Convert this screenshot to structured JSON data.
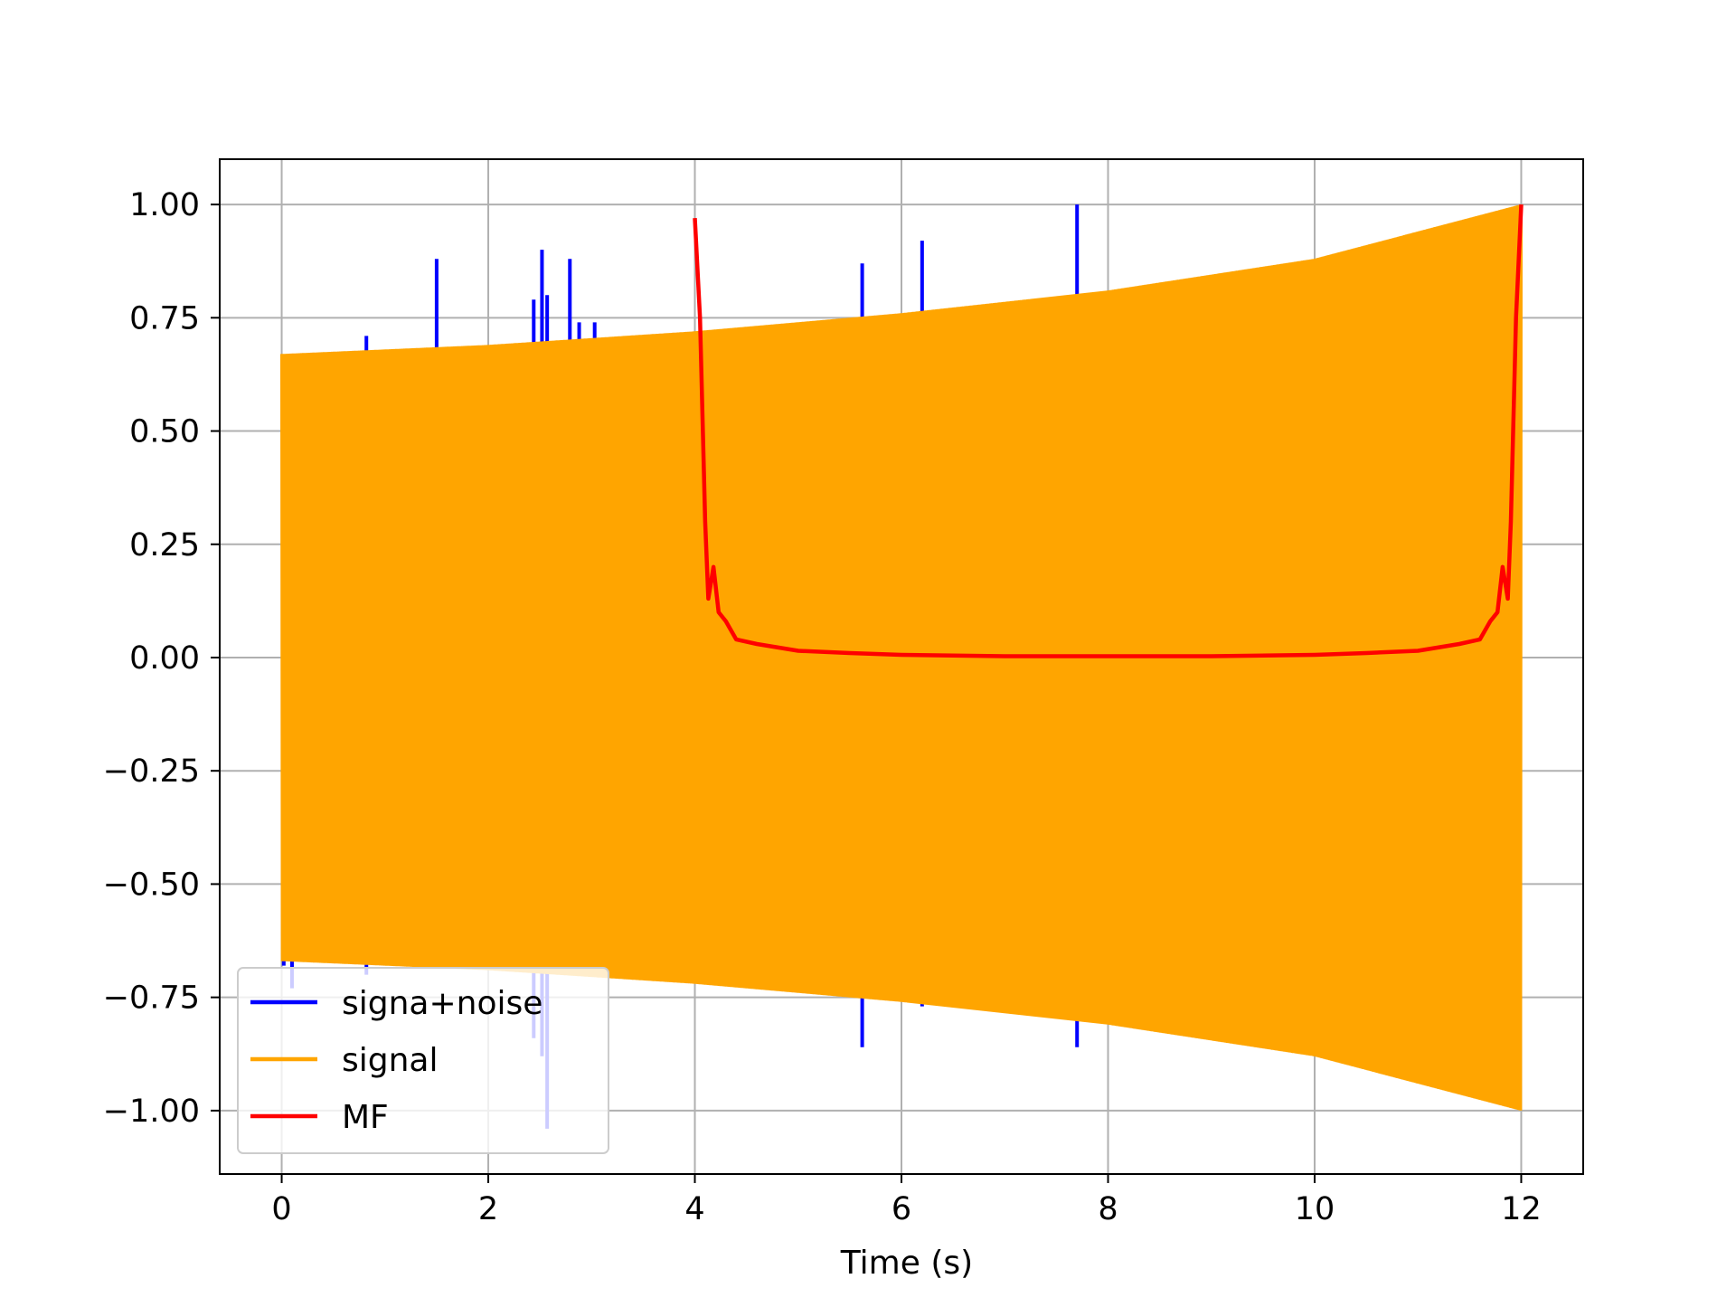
{
  "chart_data": {
    "type": "line",
    "title": "",
    "xlabel": "Time (s)",
    "ylabel": "",
    "xlim": [
      -0.6,
      12.6
    ],
    "ylim": [
      -1.14,
      1.1
    ],
    "grid": true,
    "legend_position": "lower-left",
    "xticks": [
      0,
      2,
      4,
      6,
      8,
      10,
      12
    ],
    "xtick_labels": [
      "0",
      "2",
      "4",
      "6",
      "8",
      "10",
      "12"
    ],
    "yticks": [
      1.0,
      0.75,
      0.5,
      0.25,
      0.0,
      -0.25,
      -0.5,
      -0.75,
      -1.0
    ],
    "ytick_labels": [
      "1.00",
      "0.75",
      "0.50",
      "0.25",
      "0.00",
      "−0.25",
      "−0.50",
      "−0.75",
      "−1.00"
    ],
    "series": [
      {
        "name": "signa+noise",
        "color": "#0000ff",
        "description_note_free": true,
        "spikes": [
          {
            "x": 0.02,
            "ymin": -0.68,
            "ymax": 0.6
          },
          {
            "x": 0.1,
            "ymin": -0.73,
            "ymax": 0.65
          },
          {
            "x": 0.82,
            "ymin": -0.7,
            "ymax": 0.71
          },
          {
            "x": 1.5,
            "ymin": -0.65,
            "ymax": 0.88
          },
          {
            "x": 2.44,
            "ymin": -0.84,
            "ymax": 0.79
          },
          {
            "x": 2.52,
            "ymin": -0.88,
            "ymax": 0.9
          },
          {
            "x": 2.57,
            "ymin": -1.04,
            "ymax": 0.8
          },
          {
            "x": 2.79,
            "ymin": -0.65,
            "ymax": 0.88
          },
          {
            "x": 2.88,
            "ymin": -0.65,
            "ymax": 0.74
          },
          {
            "x": 3.03,
            "ymin": -0.65,
            "ymax": 0.74
          },
          {
            "x": 5.62,
            "ymin": -0.86,
            "ymax": 0.87
          },
          {
            "x": 6.2,
            "ymin": -0.77,
            "ymax": 0.92
          },
          {
            "x": 7.7,
            "ymin": -0.86,
            "ymax": 1.0
          },
          {
            "x": 7.75,
            "ymin": -0.8,
            "ymax": 0.8
          }
        ]
      },
      {
        "name": "signal",
        "color": "#ffa500",
        "envelope_points": [
          {
            "x": 0,
            "amplitude": 0.67
          },
          {
            "x": 2,
            "amplitude": 0.69
          },
          {
            "x": 4,
            "amplitude": 0.72
          },
          {
            "x": 6,
            "amplitude": 0.76
          },
          {
            "x": 8,
            "amplitude": 0.81
          },
          {
            "x": 10,
            "amplitude": 0.88
          },
          {
            "x": 12,
            "amplitude": 1.0
          }
        ],
        "x_range": [
          0,
          12
        ]
      },
      {
        "name": "MF",
        "color": "#ff0000",
        "points": [
          [
            4.0,
            0.97
          ],
          [
            4.05,
            0.75
          ],
          [
            4.1,
            0.3
          ],
          [
            4.13,
            0.13
          ],
          [
            4.18,
            0.2
          ],
          [
            4.23,
            0.1
          ],
          [
            4.3,
            0.08
          ],
          [
            4.4,
            0.04
          ],
          [
            4.6,
            0.03
          ],
          [
            5.0,
            0.015
          ],
          [
            5.5,
            0.01
          ],
          [
            6.0,
            0.006
          ],
          [
            7.0,
            0.003
          ],
          [
            8.0,
            0.003
          ],
          [
            9.0,
            0.003
          ],
          [
            10.0,
            0.006
          ],
          [
            10.5,
            0.01
          ],
          [
            11.0,
            0.015
          ],
          [
            11.4,
            0.03
          ],
          [
            11.6,
            0.04
          ],
          [
            11.7,
            0.08
          ],
          [
            11.77,
            0.1
          ],
          [
            11.82,
            0.2
          ],
          [
            11.87,
            0.13
          ],
          [
            11.9,
            0.3
          ],
          [
            11.95,
            0.75
          ],
          [
            12.0,
            1.0
          ]
        ]
      }
    ]
  }
}
